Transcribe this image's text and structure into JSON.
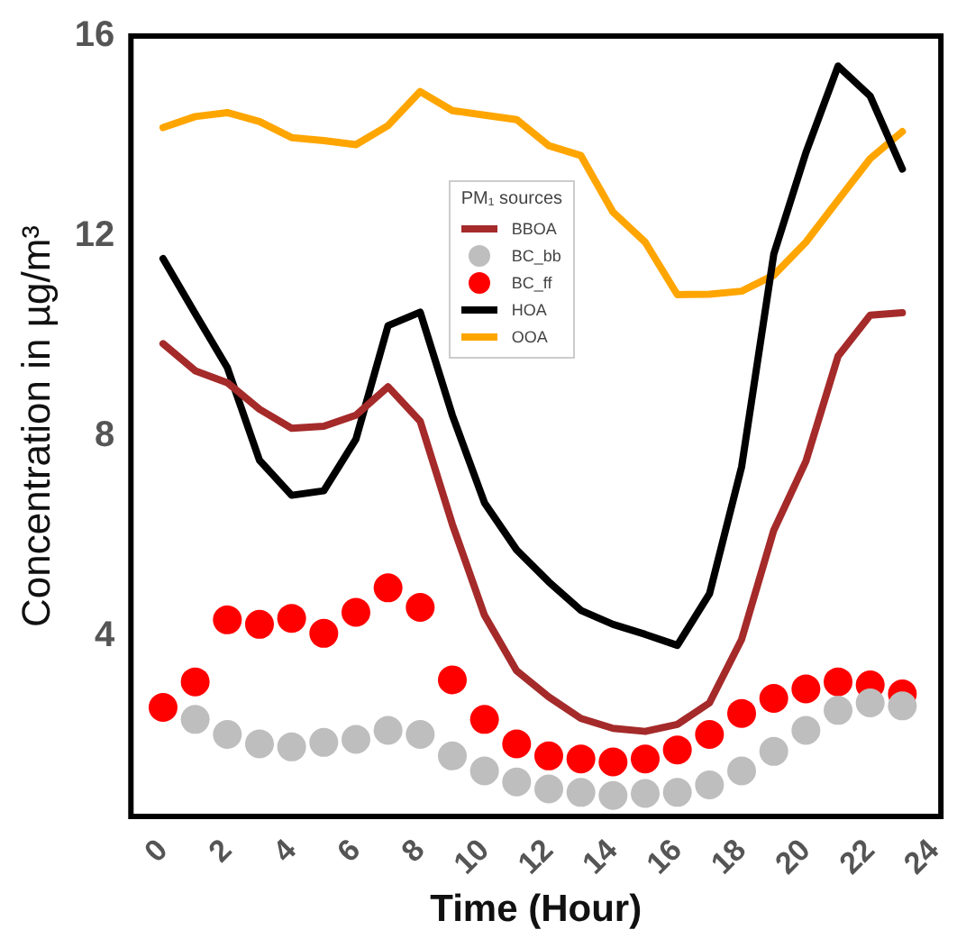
{
  "chart_data": {
    "type": "line",
    "xlabel": "Time (Hour)",
    "ylabel": "Concentration in µg/m³",
    "legend_title": "PM₁ sources",
    "legend": "top",
    "grid": false,
    "x": [
      0,
      1,
      2,
      3,
      4,
      5,
      6,
      7,
      8,
      9,
      10,
      11,
      12,
      13,
      14,
      15,
      16,
      17,
      18,
      19,
      20,
      21,
      22,
      23
    ],
    "xlim": [
      -1,
      24.2
    ],
    "xticks": [
      0,
      2,
      4,
      6,
      8,
      10,
      12,
      14,
      16,
      18,
      20,
      22,
      24
    ],
    "ylim": [
      0.4,
      16
    ],
    "yticks": [
      4,
      8,
      12,
      16
    ],
    "series": [
      {
        "name": "BBOA",
        "marker": "none",
        "color": "#a52a2a",
        "values": [
          9.85,
          9.31,
          9.07,
          8.54,
          8.16,
          8.2,
          8.42,
          8.99,
          8.3,
          6.24,
          4.42,
          3.31,
          2.79,
          2.36,
          2.16,
          2.1,
          2.24,
          2.67,
          3.94,
          6.12,
          7.5,
          9.6,
          10.42,
          10.47
        ]
      },
      {
        "name": "BC_bb",
        "type": "scatter",
        "marker": "circle",
        "color": "#bebebe",
        "values": [
          null,
          2.34,
          2.04,
          1.85,
          1.79,
          1.88,
          1.94,
          2.12,
          2.04,
          1.61,
          1.31,
          1.09,
          0.95,
          0.88,
          0.82,
          0.86,
          0.88,
          1.03,
          1.31,
          1.7,
          2.12,
          2.52,
          2.67,
          2.61
        ]
      },
      {
        "name": "BC_ff",
        "type": "scatter",
        "marker": "circle",
        "color": "#ff0000",
        "values": [
          2.58,
          3.09,
          4.33,
          4.24,
          4.36,
          4.06,
          4.48,
          4.97,
          4.58,
          3.13,
          2.34,
          1.85,
          1.61,
          1.55,
          1.49,
          1.55,
          1.73,
          2.04,
          2.46,
          2.76,
          2.95,
          3.09,
          3.03,
          2.85
        ]
      },
      {
        "name": "HOA",
        "marker": "none",
        "color": "#000000",
        "values": [
          11.55,
          10.45,
          9.37,
          7.52,
          6.82,
          6.91,
          7.94,
          10.21,
          10.48,
          8.42,
          6.67,
          5.73,
          5.09,
          4.52,
          4.24,
          4.04,
          3.82,
          4.85,
          7.39,
          11.64,
          13.67,
          15.4,
          14.8,
          13.34
        ]
      },
      {
        "name": "OOA",
        "marker": "none",
        "color": "#ffa500",
        "values": [
          14.17,
          14.39,
          14.47,
          14.29,
          13.97,
          13.91,
          13.83,
          14.21,
          14.89,
          14.51,
          14.42,
          14.33,
          13.81,
          13.61,
          12.48,
          11.88,
          10.83,
          10.84,
          10.9,
          11.22,
          11.88,
          12.72,
          13.55,
          14.09
        ]
      }
    ]
  }
}
